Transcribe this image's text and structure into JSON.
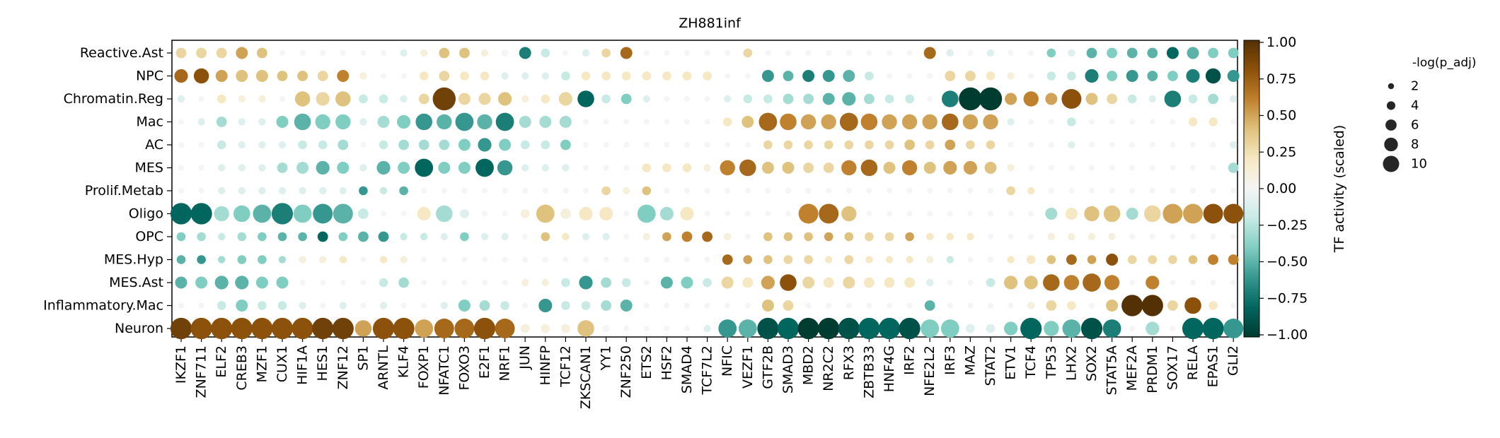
{
  "chart_data": {
    "type": "dotplot",
    "title": "ZH881inf",
    "rows": [
      "Reactive.Ast",
      "NPC",
      "Chromatin.Reg",
      "Mac",
      "AC",
      "MES",
      "Prolif.Metab",
      "Oligo",
      "OPC",
      "MES.Hyp",
      "MES.Ast",
      "Inflammatory.Mac",
      "Neuron"
    ],
    "columns": [
      "IKZF1",
      "ZNF711",
      "ELF2",
      "CREB3",
      "MZF1",
      "CUX1",
      "HIF1A",
      "HES1",
      "ZNF12",
      "SP1",
      "ARNTL",
      "KLF4",
      "FOXP1",
      "NFATC1",
      "FOXO3",
      "E2F1",
      "NRF1",
      "JUN",
      "HINFP",
      "TCF12",
      "ZKSCAN1",
      "YY1",
      "ZNF250",
      "ETS2",
      "HSF2",
      "SMAD4",
      "TCF7L2",
      "NFIC",
      "VEZF1",
      "GTF2B",
      "SMAD3",
      "MBD2",
      "NR2C2",
      "RFX3",
      "ZBTB33",
      "HNF4G",
      "IRF2",
      "NFE2L2",
      "IRF3",
      "MAZ",
      "STAT2",
      "ETV1",
      "TCF4",
      "TP53",
      "LHX2",
      "SOX2",
      "STAT5A",
      "MEF2A",
      "PRDM1",
      "SOX17",
      "RELA",
      "EPAS1",
      "GLI2"
    ],
    "activity": [
      [
        0.3,
        0.3,
        0.3,
        0.5,
        0.4,
        0.0,
        0.0,
        0.0,
        0.0,
        0.0,
        0.0,
        -0.1,
        0.1,
        0.4,
        0.4,
        0.1,
        0.0,
        -0.7,
        -0.2,
        0.0,
        -0.1,
        0.3,
        0.7,
        0.0,
        0.0,
        0.0,
        0.0,
        0.0,
        0.3,
        0.0,
        0.0,
        0.0,
        0.0,
        0.0,
        0.0,
        0.0,
        0.0,
        0.7,
        -0.1,
        0.0,
        -0.1,
        0.0,
        0.0,
        -0.4,
        -0.1,
        -0.5,
        -0.4,
        -0.5,
        -0.5,
        -0.8,
        -0.5,
        -0.4,
        -0.4
      ],
      [
        0.7,
        0.8,
        0.5,
        0.4,
        0.4,
        0.4,
        0.4,
        0.3,
        0.6,
        0.1,
        0.0,
        0.0,
        0.2,
        0.3,
        0.2,
        0.2,
        -0.1,
        -0.1,
        -0.1,
        -0.2,
        0.2,
        0.2,
        0.2,
        0.2,
        0.2,
        0.2,
        0.2,
        0.0,
        0.0,
        -0.6,
        -0.5,
        -0.7,
        -0.6,
        -0.5,
        -0.2,
        0.0,
        0.0,
        0.0,
        0.3,
        0.3,
        0.2,
        0.1,
        0.0,
        -0.2,
        -0.2,
        -0.7,
        -0.4,
        -0.6,
        -0.5,
        -0.4,
        -0.7,
        -0.9,
        -0.6
      ],
      [
        -0.1,
        0.0,
        0.2,
        0.1,
        0.1,
        0.0,
        0.4,
        0.3,
        0.4,
        -0.2,
        -0.2,
        -0.1,
        0.3,
        0.9,
        0.3,
        0.3,
        0.4,
        0.1,
        0.2,
        0.3,
        -0.8,
        -0.2,
        -0.4,
        -0.1,
        0.0,
        0.0,
        0.0,
        -0.1,
        -0.2,
        -0.2,
        -0.3,
        -0.3,
        -0.5,
        -0.5,
        -0.3,
        -0.2,
        -0.2,
        0.0,
        -0.7,
        -1.0,
        -1.0,
        0.5,
        0.6,
        0.5,
        0.8,
        0.4,
        0.3,
        -0.2,
        -0.1,
        -0.7,
        -0.2,
        -0.3,
        -0.1
      ],
      [
        0.0,
        -0.1,
        -0.3,
        -0.1,
        -0.1,
        -0.4,
        -0.5,
        -0.4,
        -0.4,
        -0.1,
        -0.3,
        -0.4,
        -0.6,
        -0.5,
        -0.6,
        -0.5,
        -0.7,
        -0.3,
        -0.3,
        -0.3,
        0.0,
        0.0,
        0.0,
        0.0,
        0.0,
        0.0,
        0.0,
        0.2,
        0.4,
        0.7,
        0.6,
        0.5,
        0.5,
        0.7,
        0.6,
        0.5,
        0.5,
        0.5,
        0.7,
        0.5,
        0.5,
        -0.1,
        0.0,
        0.0,
        -0.2,
        0.0,
        0.0,
        0.0,
        0.0,
        0.0,
        0.2,
        0.2,
        0.0
      ],
      [
        0.0,
        0.0,
        -0.2,
        -0.1,
        -0.1,
        -0.1,
        -0.2,
        -0.2,
        -0.3,
        0.0,
        -0.2,
        -0.3,
        -0.3,
        -0.3,
        -0.4,
        -0.6,
        -0.4,
        -0.2,
        -0.2,
        -0.4,
        0.0,
        0.0,
        0.0,
        0.0,
        0.0,
        0.0,
        0.0,
        0.0,
        0.0,
        0.3,
        0.3,
        0.3,
        0.3,
        0.3,
        0.3,
        0.3,
        0.4,
        0.3,
        0.5,
        0.3,
        0.3,
        0.0,
        0.0,
        0.0,
        -0.1,
        0.0,
        0.0,
        0.0,
        0.0,
        0.0,
        0.0,
        0.0,
        -0.1
      ],
      [
        0.0,
        0.0,
        -0.1,
        -0.1,
        -0.1,
        -0.3,
        -0.3,
        -0.5,
        -0.4,
        -0.1,
        -0.5,
        -0.4,
        -0.8,
        -0.4,
        -0.4,
        -0.8,
        -0.6,
        -0.1,
        -0.1,
        -0.1,
        0.0,
        0.0,
        0.0,
        0.2,
        0.2,
        0.2,
        0.1,
        0.6,
        0.7,
        0.4,
        0.4,
        0.3,
        0.3,
        0.6,
        0.7,
        0.4,
        0.6,
        0.4,
        0.5,
        0.5,
        0.4,
        0.1,
        0.0,
        0.0,
        0.0,
        0.0,
        0.0,
        0.0,
        0.0,
        0.0,
        0.0,
        0.0,
        -0.3
      ],
      [
        0.0,
        0.0,
        -0.1,
        -0.1,
        -0.1,
        -0.1,
        -0.1,
        -0.1,
        -0.1,
        -0.6,
        -0.2,
        -0.5,
        0.0,
        0.0,
        0.0,
        0.0,
        0.0,
        0.0,
        0.0,
        0.0,
        0.0,
        0.3,
        0.1,
        0.4,
        0.0,
        0.0,
        0.0,
        0.0,
        0.0,
        0.0,
        0.0,
        0.0,
        0.0,
        0.0,
        0.0,
        0.0,
        0.0,
        0.0,
        0.0,
        0.0,
        0.0,
        0.3,
        0.2,
        0.0,
        0.0,
        0.0,
        0.0,
        0.0,
        0.0,
        0.0,
        0.0,
        0.0,
        0.0
      ],
      [
        -0.8,
        -0.8,
        -0.3,
        -0.4,
        -0.5,
        -0.7,
        -0.4,
        -0.6,
        -0.5,
        -0.2,
        0.0,
        0.0,
        0.2,
        -0.3,
        -0.1,
        0.0,
        0.0,
        0.1,
        0.4,
        0.1,
        0.2,
        0.2,
        0.0,
        -0.4,
        -0.3,
        0.2,
        0.0,
        0.0,
        0.0,
        0.0,
        0.0,
        0.6,
        0.7,
        0.4,
        0.0,
        0.0,
        0.0,
        0.0,
        0.0,
        0.0,
        0.0,
        0.0,
        0.0,
        -0.3,
        0.2,
        0.4,
        0.4,
        -0.3,
        0.3,
        0.5,
        0.5,
        0.8,
        0.8
      ],
      [
        -0.4,
        -0.3,
        -0.2,
        -0.3,
        -0.4,
        -0.5,
        -0.5,
        -0.8,
        -0.4,
        -0.5,
        -0.6,
        -0.2,
        -0.2,
        -0.1,
        -0.4,
        -0.1,
        -0.1,
        0.0,
        0.4,
        0.2,
        -0.1,
        -0.1,
        0.0,
        0.1,
        0.5,
        0.6,
        0.7,
        0.1,
        0.0,
        0.4,
        0.4,
        0.4,
        0.5,
        0.4,
        0.3,
        0.3,
        0.5,
        0.2,
        0.2,
        0.2,
        0.0,
        0.0,
        0.0,
        0.1,
        0.1,
        0.1,
        0.1,
        0.0,
        0.0,
        0.0,
        0.0,
        0.0,
        0.0
      ],
      [
        -0.5,
        -0.6,
        -0.3,
        -0.4,
        -0.4,
        -0.3,
        0.1,
        0.1,
        0.2,
        0.0,
        0.2,
        0.1,
        0.0,
        0.0,
        0.0,
        0.0,
        0.0,
        0.0,
        0.0,
        0.0,
        0.0,
        0.0,
        0.0,
        0.0,
        0.0,
        0.0,
        0.0,
        0.7,
        0.5,
        0.4,
        0.3,
        0.3,
        0.2,
        0.3,
        0.2,
        0.2,
        0.2,
        0.1,
        -0.2,
        0.0,
        0.0,
        0.2,
        0.2,
        0.4,
        0.7,
        0.5,
        0.8,
        0.3,
        0.3,
        0.3,
        0.4,
        0.6,
        0.6
      ],
      [
        -0.5,
        -0.4,
        -0.5,
        -0.5,
        -0.4,
        -0.4,
        0.0,
        0.0,
        0.0,
        0.0,
        -0.2,
        -0.3,
        0.0,
        0.0,
        0.0,
        0.0,
        0.0,
        0.1,
        0.1,
        -0.2,
        -0.6,
        -0.3,
        -0.2,
        0.0,
        -0.5,
        -0.4,
        -0.2,
        0.3,
        0.2,
        0.5,
        0.8,
        0.3,
        0.2,
        0.3,
        0.2,
        0.2,
        0.2,
        -0.1,
        0.0,
        0.0,
        -0.2,
        0.4,
        0.4,
        0.7,
        0.6,
        0.7,
        0.6,
        0.0,
        0.6,
        0.0,
        0.0,
        0.0,
        0.0
      ],
      [
        0.0,
        0.0,
        -0.2,
        -0.4,
        -0.2,
        -0.2,
        -0.1,
        0.0,
        -0.1,
        0.0,
        -0.1,
        0.0,
        0.0,
        -0.1,
        -0.4,
        -0.3,
        -0.2,
        0.0,
        -0.6,
        -0.2,
        -0.2,
        -0.3,
        -0.5,
        0.0,
        0.0,
        0.0,
        0.0,
        0.0,
        0.0,
        0.4,
        0.3,
        0.0,
        0.0,
        0.0,
        0.0,
        0.0,
        0.0,
        -0.5,
        0.0,
        0.0,
        0.0,
        0.0,
        0.1,
        0.3,
        0.2,
        0.0,
        0.4,
        1.0,
        1.0,
        0.3,
        0.8,
        0.2,
        0.0
      ],
      [
        0.9,
        0.8,
        0.8,
        0.8,
        0.8,
        0.8,
        0.8,
        0.9,
        0.9,
        0.5,
        0.8,
        0.8,
        0.5,
        0.7,
        0.7,
        0.8,
        0.7,
        0.1,
        0.1,
        0.1,
        0.4,
        0.0,
        0.0,
        0.0,
        0.0,
        0.0,
        -0.1,
        -0.6,
        -0.5,
        -0.9,
        -0.8,
        -1.0,
        -1.0,
        -0.9,
        -0.8,
        -0.8,
        -0.9,
        -0.4,
        -0.4,
        -0.1,
        -0.1,
        -0.4,
        -0.8,
        -0.4,
        -0.5,
        -0.9,
        -0.7,
        0.0,
        -0.3,
        0.0,
        -0.8,
        -0.8,
        -0.6
      ]
    ],
    "significance": [
      [
        4,
        4,
        4,
        5,
        4,
        1,
        1,
        1,
        1,
        1,
        1,
        2,
        2,
        4,
        4,
        2,
        2,
        5,
        3,
        1,
        2,
        3,
        5,
        1,
        1,
        1,
        1,
        1,
        3,
        1,
        1,
        1,
        1,
        1,
        1,
        1,
        1,
        5,
        2,
        1,
        2,
        1,
        1,
        3,
        2,
        4,
        4,
        4,
        4,
        5,
        5,
        4,
        4
      ],
      [
        6,
        7,
        5,
        5,
        5,
        4,
        4,
        4,
        5,
        2,
        1,
        1,
        3,
        4,
        3,
        3,
        2,
        2,
        2,
        3,
        3,
        3,
        3,
        3,
        3,
        3,
        3,
        1,
        1,
        5,
        4,
        5,
        5,
        5,
        3,
        1,
        1,
        1,
        4,
        4,
        3,
        2,
        1,
        3,
        3,
        6,
        4,
        5,
        4,
        4,
        6,
        7,
        5
      ],
      [
        2,
        1,
        3,
        2,
        2,
        1,
        7,
        6,
        7,
        3,
        3,
        2,
        4,
        12,
        5,
        5,
        6,
        2,
        3,
        6,
        8,
        3,
        4,
        2,
        1,
        1,
        1,
        2,
        3,
        3,
        4,
        4,
        5,
        6,
        4,
        3,
        3,
        1,
        8,
        12,
        12,
        5,
        7,
        5,
        10,
        5,
        4,
        3,
        2,
        8,
        3,
        4,
        2
      ],
      [
        1,
        2,
        4,
        2,
        2,
        5,
        8,
        7,
        7,
        2,
        5,
        6,
        8,
        7,
        9,
        7,
        9,
        5,
        5,
        5,
        1,
        1,
        1,
        1,
        1,
        1,
        1,
        3,
        5,
        9,
        8,
        7,
        7,
        9,
        8,
        7,
        7,
        7,
        8,
        7,
        7,
        2,
        1,
        1,
        3,
        1,
        1,
        1,
        1,
        1,
        3,
        3,
        1
      ],
      [
        1,
        1,
        3,
        2,
        2,
        2,
        3,
        3,
        4,
        1,
        3,
        4,
        4,
        4,
        5,
        6,
        5,
        3,
        3,
        4,
        1,
        1,
        1,
        1,
        1,
        1,
        1,
        1,
        1,
        3,
        3,
        3,
        3,
        3,
        3,
        3,
        4,
        3,
        4,
        3,
        3,
        1,
        1,
        1,
        2,
        1,
        1,
        1,
        1,
        1,
        1,
        1,
        2
      ],
      [
        1,
        1,
        2,
        2,
        2,
        4,
        5,
        6,
        5,
        2,
        6,
        5,
        9,
        5,
        5,
        9,
        7,
        2,
        2,
        2,
        1,
        1,
        1,
        3,
        3,
        3,
        2,
        7,
        8,
        5,
        5,
        4,
        4,
        7,
        8,
        5,
        7,
        5,
        6,
        6,
        5,
        2,
        1,
        1,
        1,
        1,
        1,
        1,
        1,
        1,
        1,
        1,
        4
      ],
      [
        1,
        1,
        2,
        2,
        2,
        2,
        2,
        2,
        2,
        3,
        2,
        3,
        1,
        1,
        1,
        1,
        1,
        1,
        1,
        1,
        1,
        3,
        2,
        3,
        1,
        1,
        1,
        1,
        1,
        1,
        1,
        1,
        1,
        1,
        1,
        1,
        1,
        1,
        1,
        1,
        1,
        3,
        2,
        1,
        1,
        1,
        1,
        1,
        1,
        1,
        1,
        1,
        1
      ],
      [
        11,
        11,
        7,
        8,
        9,
        11,
        9,
        10,
        10,
        4,
        1,
        1,
        6,
        8,
        3,
        1,
        1,
        3,
        9,
        4,
        6,
        6,
        1,
        9,
        6,
        6,
        1,
        1,
        1,
        1,
        1,
        10,
        10,
        7,
        1,
        1,
        1,
        1,
        1,
        1,
        1,
        1,
        1,
        5,
        5,
        7,
        8,
        5,
        8,
        10,
        10,
        10,
        10
      ],
      [
        3,
        3,
        2,
        3,
        3,
        3,
        3,
        4,
        3,
        4,
        4,
        2,
        2,
        2,
        3,
        2,
        2,
        1,
        3,
        2,
        2,
        2,
        1,
        2,
        3,
        4,
        4,
        2,
        1,
        3,
        3,
        3,
        3,
        3,
        3,
        3,
        3,
        2,
        2,
        2,
        1,
        1,
        1,
        2,
        2,
        2,
        2,
        1,
        1,
        1,
        1,
        1,
        1
      ],
      [
        3,
        3,
        2,
        3,
        3,
        2,
        2,
        2,
        2,
        1,
        2,
        2,
        1,
        1,
        1,
        1,
        1,
        1,
        1,
        1,
        1,
        1,
        1,
        1,
        1,
        1,
        1,
        4,
        3,
        3,
        3,
        3,
        2,
        3,
        2,
        2,
        2,
        2,
        2,
        1,
        1,
        2,
        3,
        3,
        4,
        3,
        5,
        3,
        3,
        3,
        3,
        4,
        4
      ],
      [
        5,
        5,
        6,
        6,
        5,
        5,
        1,
        1,
        1,
        1,
        3,
        4,
        1,
        1,
        1,
        1,
        1,
        2,
        2,
        3,
        6,
        4,
        3,
        1,
        5,
        5,
        3,
        5,
        4,
        6,
        8,
        5,
        4,
        5,
        4,
        4,
        4,
        2,
        1,
        1,
        3,
        6,
        6,
        8,
        7,
        9,
        7,
        1,
        6,
        1,
        1,
        1,
        1
      ],
      [
        1,
        1,
        3,
        5,
        3,
        3,
        2,
        1,
        2,
        1,
        2,
        1,
        1,
        2,
        5,
        4,
        3,
        1,
        6,
        3,
        3,
        4,
        5,
        1,
        1,
        1,
        1,
        1,
        1,
        5,
        4,
        1,
        1,
        1,
        1,
        1,
        1,
        4,
        1,
        1,
        1,
        1,
        2,
        4,
        3,
        1,
        5,
        11,
        11,
        4,
        8,
        3,
        1
      ],
      [
        11,
        11,
        11,
        11,
        11,
        11,
        11,
        11,
        11,
        8,
        11,
        11,
        9,
        10,
        10,
        11,
        10,
        3,
        3,
        3,
        8,
        2,
        1,
        1,
        1,
        1,
        2,
        9,
        9,
        11,
        11,
        11,
        11,
        11,
        11,
        11,
        11,
        9,
        9,
        3,
        3,
        6,
        11,
        7,
        9,
        11,
        9,
        1,
        6,
        1,
        11,
        11,
        10
      ]
    ],
    "colorbar": {
      "label": "TF activity (scaled)",
      "ticks": [
        "1.00",
        "0.75",
        "0.50",
        "0.25",
        "0.00",
        "−0.25",
        "−0.50",
        "−0.75",
        "−1.00"
      ],
      "range": [
        -1,
        1
      ],
      "colormap": "BrBG",
      "stops": [
        "#003c30",
        "#01665e",
        "#35978f",
        "#80cdc1",
        "#c7eae5",
        "#f5f5f5",
        "#f6e8c3",
        "#dfc27d",
        "#bf812d",
        "#8c510a",
        "#543005"
      ]
    },
    "size_legend": {
      "title": "-log(p_adj)",
      "values": [
        2,
        4,
        6,
        8,
        10
      ],
      "labels": [
        "2",
        "4",
        "6",
        "8",
        "10"
      ]
    }
  }
}
